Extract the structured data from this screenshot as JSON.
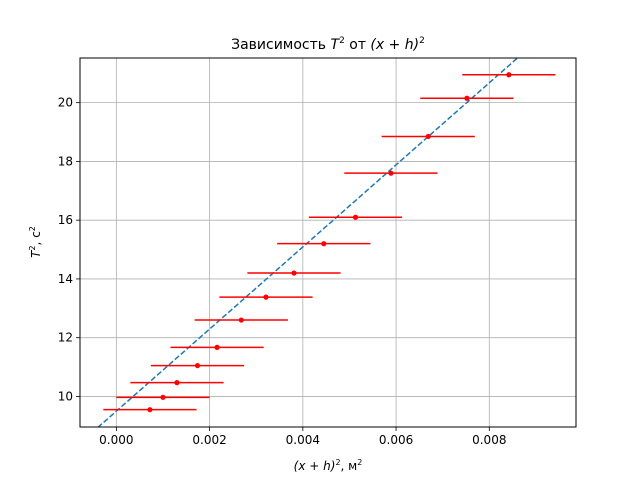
{
  "chart_data": {
    "type": "scatter",
    "title_prefix": "Зависимость ",
    "title_t": "T",
    "title_sup": "2",
    "title_mid": " от ",
    "title_xh": "(x + h)",
    "title_sup2": "2",
    "xlabel_main": "(x + h)",
    "xlabel_sup": "2",
    "xlabel_unit": ", м",
    "xlabel_unit_sup": "2",
    "ylabel_t": "T",
    "ylabel_sup": "2",
    "ylabel_unit": ", с",
    "ylabel_unit_sup": "2",
    "xlim": [
      -0.00078,
      0.00986
    ],
    "ylim": [
      8.96,
      21.52
    ],
    "xticks": [
      0.0,
      0.002,
      0.004,
      0.006,
      0.008
    ],
    "xtick_labels": [
      "0.000",
      "0.002",
      "0.004",
      "0.006",
      "0.008"
    ],
    "yticks": [
      10,
      12,
      14,
      16,
      18,
      20
    ],
    "ytick_labels": [
      "10",
      "12",
      "14",
      "16",
      "18",
      "20"
    ],
    "grid": true,
    "series": [
      {
        "color": "#ff0000",
        "marker": "dot",
        "x": [
          0.00072,
          0.001,
          0.0013,
          0.00174,
          0.00216,
          0.00268,
          0.00321,
          0.00381,
          0.00445,
          0.00513,
          0.00589,
          0.00669,
          0.00752,
          0.00842
        ],
        "y": [
          9.55,
          9.97,
          10.47,
          11.05,
          11.67,
          12.6,
          13.38,
          14.2,
          15.2,
          16.1,
          17.6,
          18.85,
          20.15,
          20.95
        ],
        "xerr": [
          0.001,
          0.001,
          0.001,
          0.001,
          0.001,
          0.001,
          0.001,
          0.001,
          0.001,
          0.001,
          0.001,
          0.001,
          0.001,
          0.001
        ]
      }
    ],
    "fit_line": {
      "color": "#1f77b4",
      "style": "dashed",
      "slope": 1397,
      "intercept": 9.5
    }
  }
}
